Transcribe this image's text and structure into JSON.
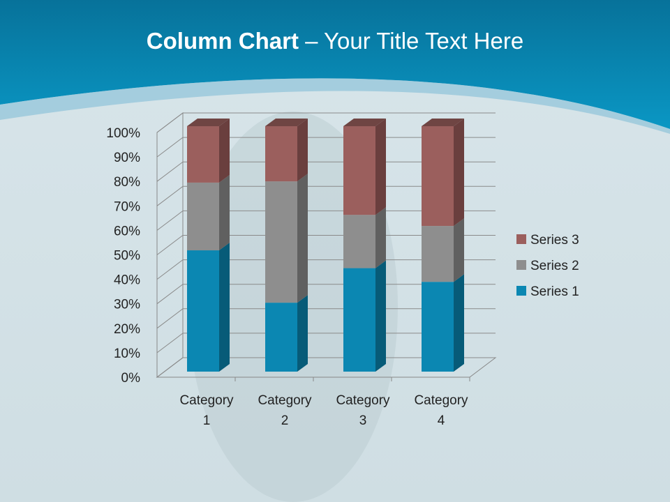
{
  "title": {
    "bold": "Column Chart",
    "rest": " – Your Title Text Here"
  },
  "colors": {
    "header": "#0a86b0",
    "background": "#d3e1e6"
  },
  "chart_data": {
    "type": "bar",
    "subtype": "100% stacked 3D column",
    "categories": [
      [
        "Category",
        "1"
      ],
      [
        "Category",
        "2"
      ],
      [
        "Category",
        "3"
      ],
      [
        "Category",
        "4"
      ]
    ],
    "series": [
      {
        "name": "Series 1",
        "values": [
          4.3,
          2.5,
          3.5,
          4.5
        ],
        "color": "#0b87b2",
        "side": "#075b78",
        "top": "#0a7aa0"
      },
      {
        "name": "Series 2",
        "values": [
          2.4,
          4.4,
          1.8,
          2.8
        ],
        "color": "#8e8e8e",
        "side": "#606060",
        "top": "#777777"
      },
      {
        "name": "Series 3",
        "values": [
          2,
          2,
          3,
          5
        ],
        "color": "#9b5f5d",
        "side": "#6a3f3e",
        "top": "#6f4543"
      }
    ],
    "yticks": [
      "0%",
      "10%",
      "20%",
      "30%",
      "40%",
      "50%",
      "60%",
      "70%",
      "80%",
      "90%",
      "100%"
    ],
    "ylim": [
      0,
      100
    ],
    "grid": true,
    "legend": "right"
  }
}
